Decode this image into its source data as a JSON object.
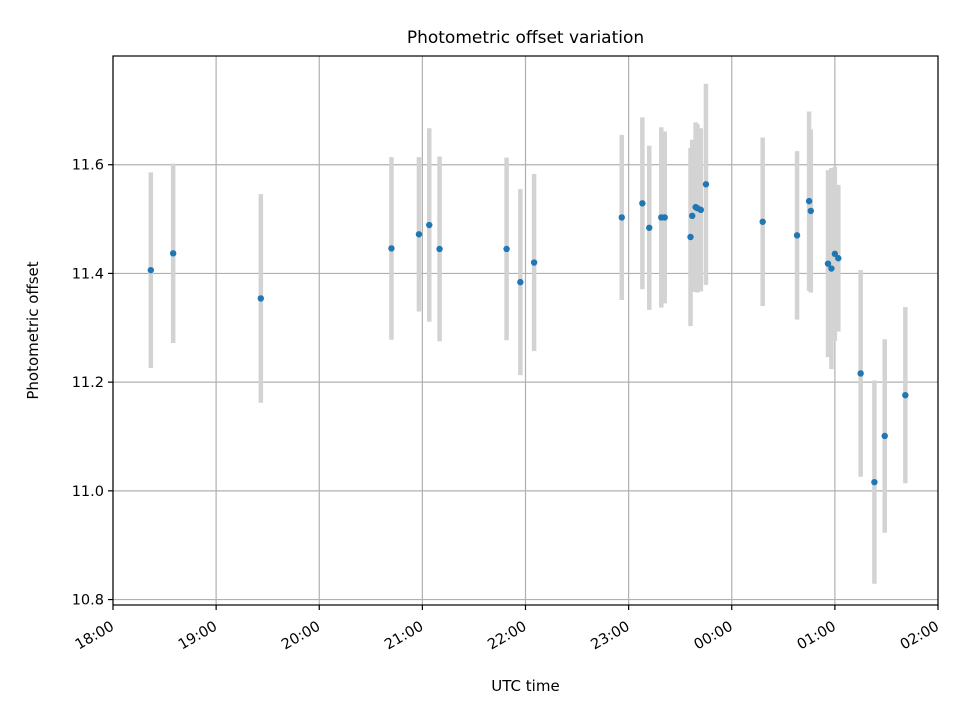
{
  "chart_data": {
    "type": "scatter",
    "title": "Photometric offset variation",
    "xlabel": "UTC time",
    "ylabel": "Photometric offset",
    "x_axis_type": "time",
    "xlim": [
      "18:00",
      "02:00"
    ],
    "x_tick_labels": [
      "18:00",
      "19:00",
      "20:00",
      "21:00",
      "22:00",
      "23:00",
      "00:00",
      "01:00",
      "02:00"
    ],
    "ylim": [
      10.79,
      11.8
    ],
    "y_ticks": [
      10.8,
      11.0,
      11.2,
      11.4,
      11.6
    ],
    "grid": true,
    "marker_color": "#1f77b4",
    "errorbar_color": "#d3d3d3",
    "series": [
      {
        "points": [
          {
            "t": "18:22",
            "y": 11.406,
            "err": 0.18
          },
          {
            "t": "18:35",
            "y": 11.437,
            "err": 0.165
          },
          {
            "t": "19:26",
            "y": 11.354,
            "err": 0.192
          },
          {
            "t": "20:42",
            "y": 11.446,
            "err": 0.168
          },
          {
            "t": "20:58",
            "y": 11.472,
            "err": 0.142
          },
          {
            "t": "21:04",
            "y": 11.489,
            "err": 0.178
          },
          {
            "t": "21:10",
            "y": 11.445,
            "err": 0.17
          },
          {
            "t": "21:49",
            "y": 11.445,
            "err": 0.168
          },
          {
            "t": "21:57",
            "y": 11.384,
            "err": 0.171
          },
          {
            "t": "22:05",
            "y": 11.42,
            "err": 0.163
          },
          {
            "t": "22:56",
            "y": 11.503,
            "err": 0.152
          },
          {
            "t": "23:08",
            "y": 11.529,
            "err": 0.158
          },
          {
            "t": "23:12",
            "y": 11.484,
            "err": 0.151
          },
          {
            "t": "23:19",
            "y": 11.503,
            "err": 0.166
          },
          {
            "t": "23:21",
            "y": 11.503,
            "err": 0.158
          },
          {
            "t": "23:36",
            "y": 11.467,
            "err": 0.164
          },
          {
            "t": "23:37",
            "y": 11.506,
            "err": 0.14
          },
          {
            "t": "23:39",
            "y": 11.522,
            "err": 0.156
          },
          {
            "t": "23:40",
            "y": 11.52,
            "err": 0.155
          },
          {
            "t": "23:42",
            "y": 11.517,
            "err": 0.15
          },
          {
            "t": "23:45",
            "y": 11.564,
            "err": 0.185
          },
          {
            "t": "00:18",
            "y": 11.495,
            "err": 0.155
          },
          {
            "t": "00:38",
            "y": 11.47,
            "err": 0.155
          },
          {
            "t": "00:45",
            "y": 11.533,
            "err": 0.165
          },
          {
            "t": "00:46",
            "y": 11.515,
            "err": 0.15
          },
          {
            "t": "00:56",
            "y": 11.418,
            "err": 0.172
          },
          {
            "t": "00:58",
            "y": 11.409,
            "err": 0.185
          },
          {
            "t": "01:00",
            "y": 11.436,
            "err": 0.16
          },
          {
            "t": "01:02",
            "y": 11.428,
            "err": 0.135
          },
          {
            "t": "01:15",
            "y": 11.216,
            "err": 0.19
          },
          {
            "t": "01:23",
            "y": 11.016,
            "err": 0.187
          },
          {
            "t": "01:29",
            "y": 11.101,
            "err": 0.178
          },
          {
            "t": "01:41",
            "y": 11.176,
            "err": 0.162
          }
        ]
      }
    ]
  }
}
